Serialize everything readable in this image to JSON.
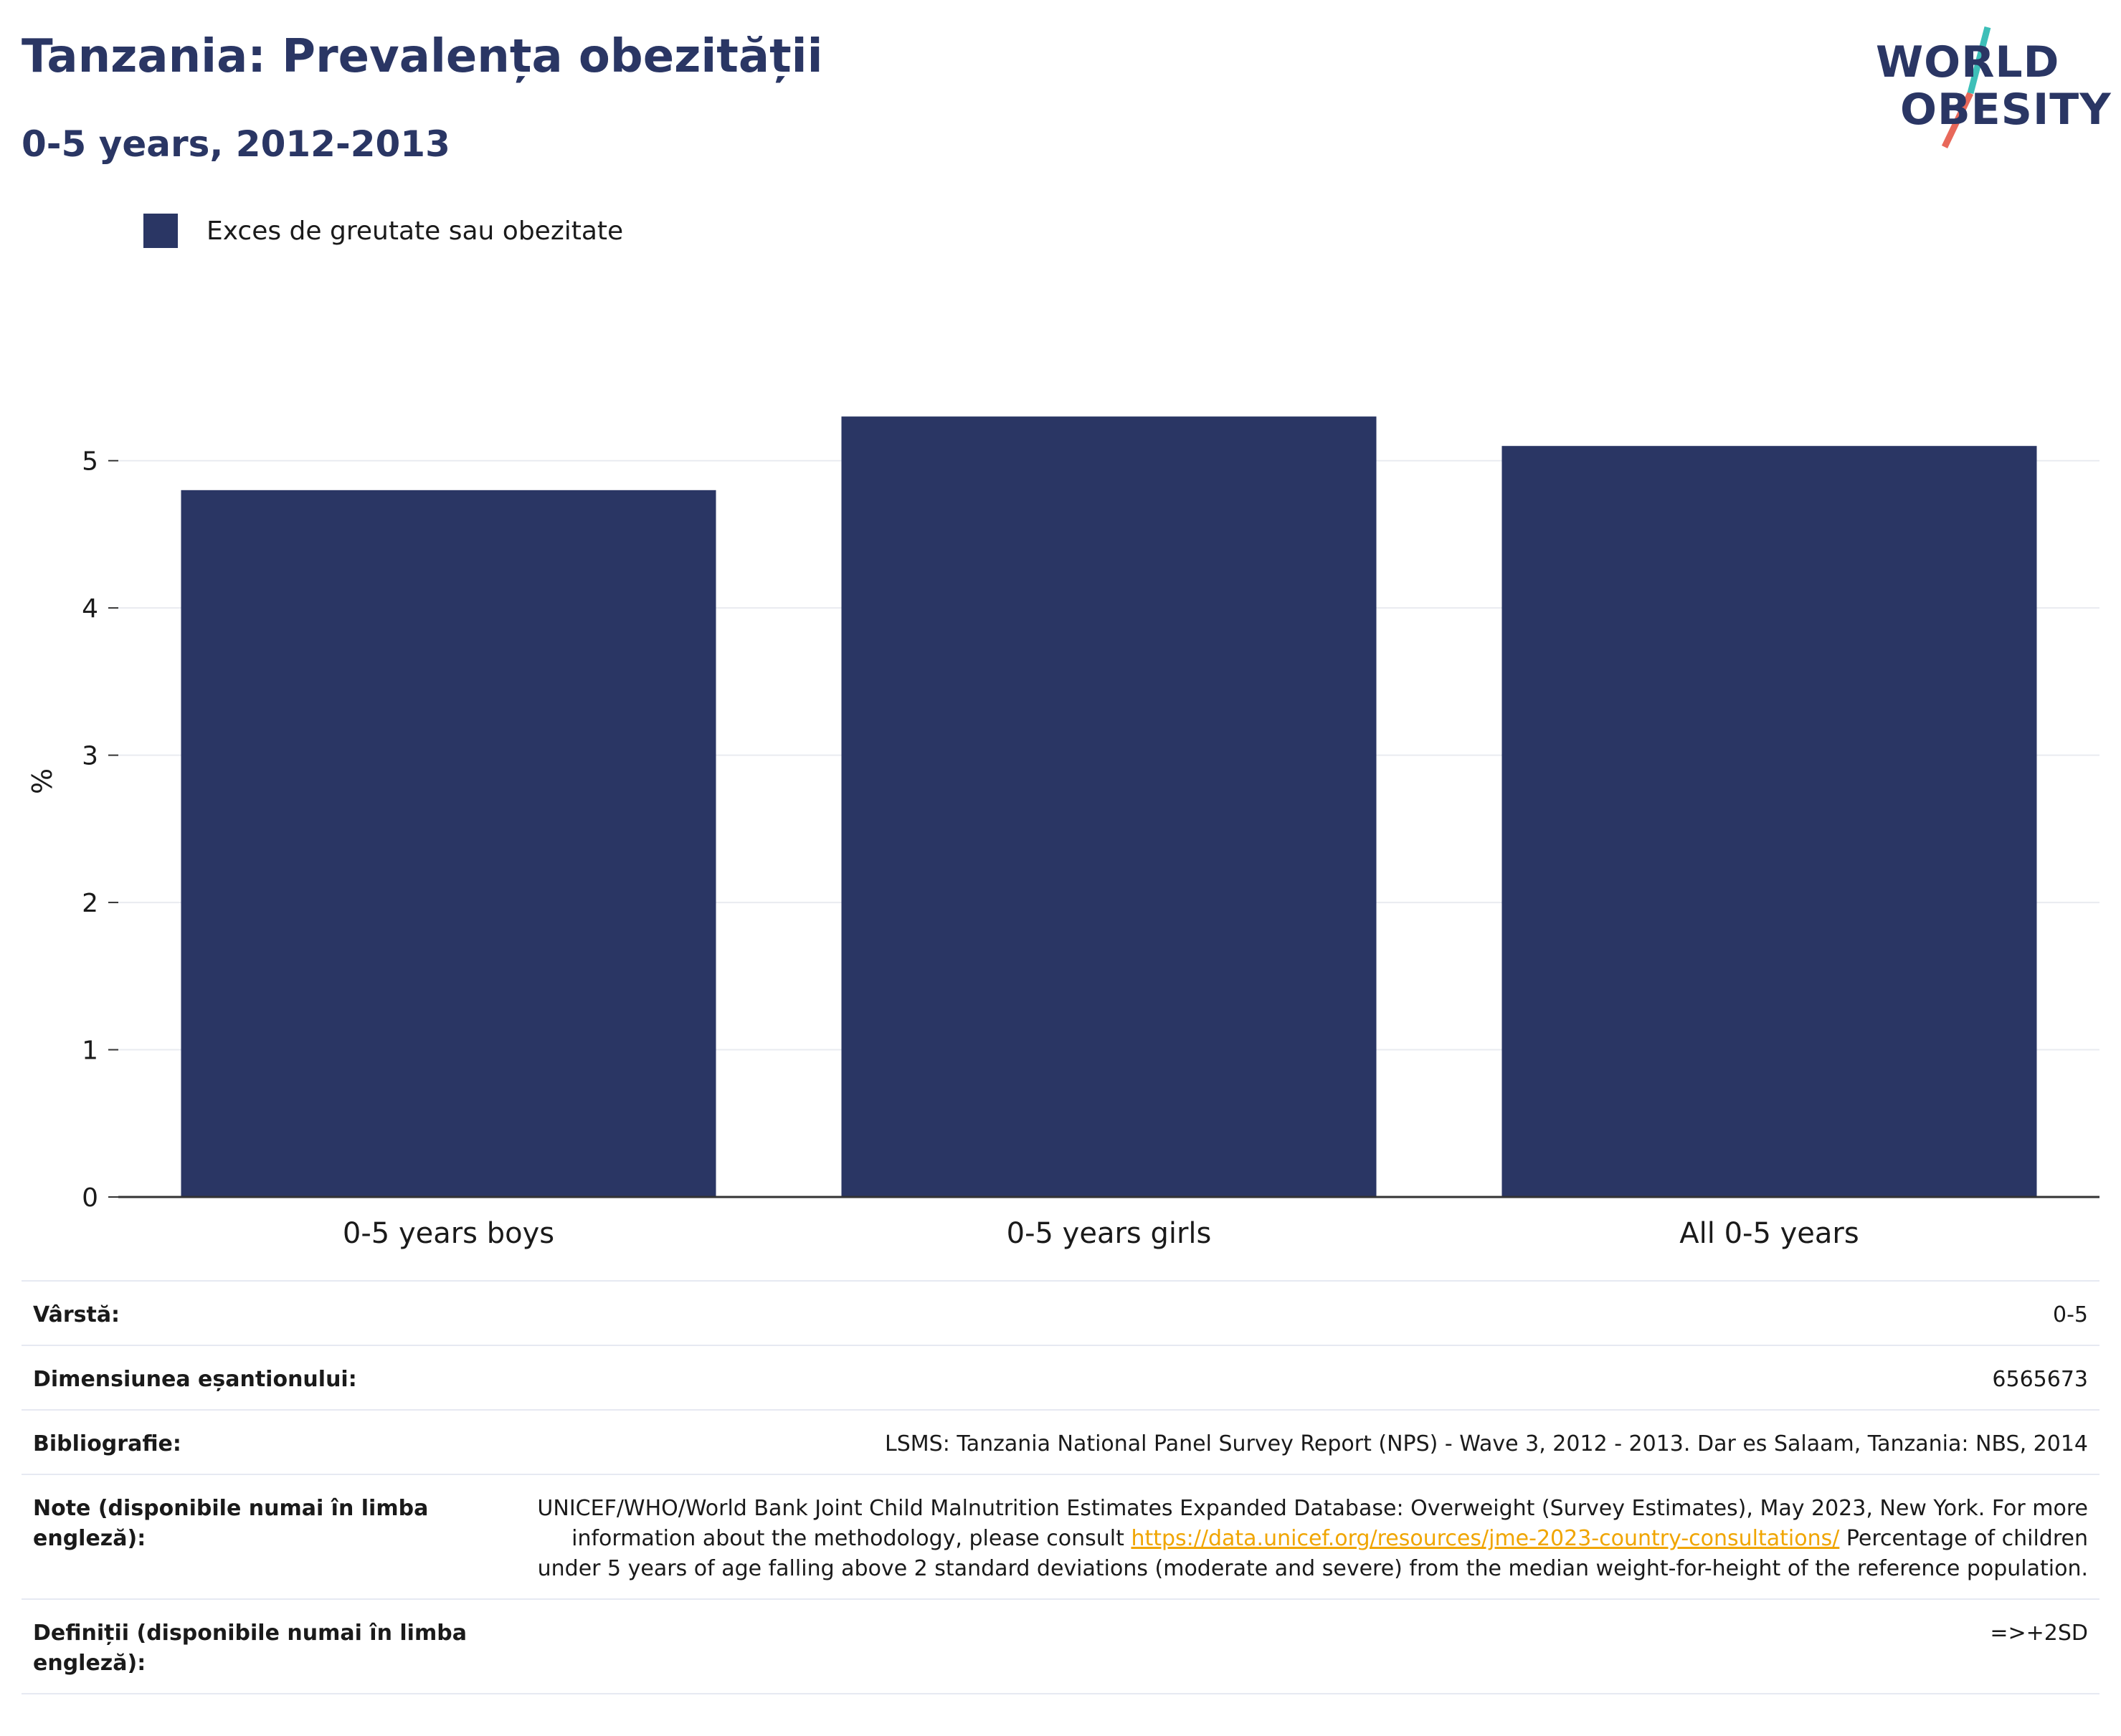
{
  "header": {
    "title": "Tanzania: Prevalența obezității",
    "subtitle": "0-5 years, 2012-2013"
  },
  "logo": {
    "line1": "WORLD",
    "line2": "OBESITY",
    "colors": {
      "text": "#2a3664",
      "slash_top": "#3dbfb8",
      "slash_bottom": "#e8685a"
    }
  },
  "chart_data": {
    "type": "bar",
    "categories": [
      "0-5 years boys",
      "0-5 years girls",
      "All 0-5 years"
    ],
    "series": [
      {
        "name": "Exces de greutate sau obezitate",
        "values": [
          4.8,
          5.3,
          5.1
        ],
        "color": "#2a3664"
      }
    ],
    "ylabel": "%",
    "ylim": [
      0,
      5.5
    ],
    "yticks": [
      0,
      1,
      2,
      3,
      4,
      5
    ],
    "grid": true,
    "legend_position": "top-left"
  },
  "info": {
    "rows": [
      {
        "key": "Vârstă:",
        "value": "0-5"
      },
      {
        "key": "Dimensiunea eșantionului:",
        "value": "6565673"
      },
      {
        "key": "Bibliografie:",
        "value": "LSMS: Tanzania National Panel Survey Report (NPS) - Wave 3, 2012 - 2013. Dar es Salaam, Tanzania: NBS, 2014"
      }
    ],
    "notes": {
      "key": "Note (disponibile numai în limba engleză):",
      "text_before": "UNICEF/WHO/World Bank Joint Child Malnutrition Estimates Expanded Database: Overweight (Survey Estimates), May 2023, New York. For more information about the methodology, please consult ",
      "link": "https://data.unicef.org/resources/jme-2023-country-consultations/",
      "text_after": " Percentage of children under 5 years of age falling above 2 standard deviations (moderate and severe) from the median weight-for-height of the reference population."
    },
    "definitions": {
      "key": "Definiții (disponibile numai în limba engleză):",
      "value": "=>+2SD"
    }
  }
}
